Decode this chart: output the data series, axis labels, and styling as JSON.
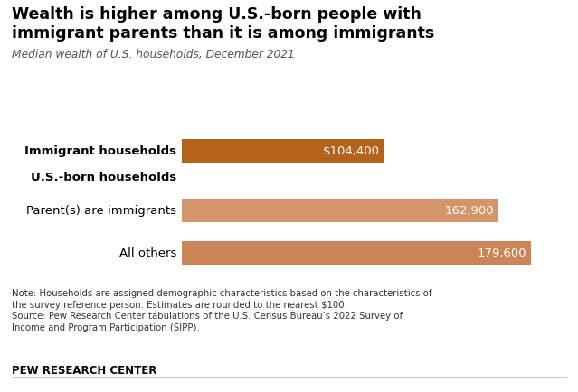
{
  "title_line1": "Wealth is higher among U.S.-born people with",
  "title_line2": "immigrant parents than it is among immigrants",
  "subtitle": "Median wealth of U.S. households, December 2021",
  "bar_categories": [
    "Immigrant households",
    "Parent(s) are immigrants",
    "All others"
  ],
  "values": [
    104400,
    162900,
    179600
  ],
  "bar_colors": [
    "#b5631c",
    "#d4956a",
    "#cc8558"
  ],
  "bar_labels": [
    "$104,400",
    "162,900",
    "179,600"
  ],
  "group_header": "U.S.-born households",
  "note_text": "Note: Households are assigned demographic characteristics based on the characteristics of\nthe survey reference person. Estimates are rounded to the nearest $100.\nSource: Pew Research Center tabulations of the U.S. Census Bureau’s 2022 Survey of\nIncome and Program Participation (SIPP).",
  "footer": "PEW RESEARCH CENTER",
  "background_color": "#ffffff",
  "max_value": 195000
}
